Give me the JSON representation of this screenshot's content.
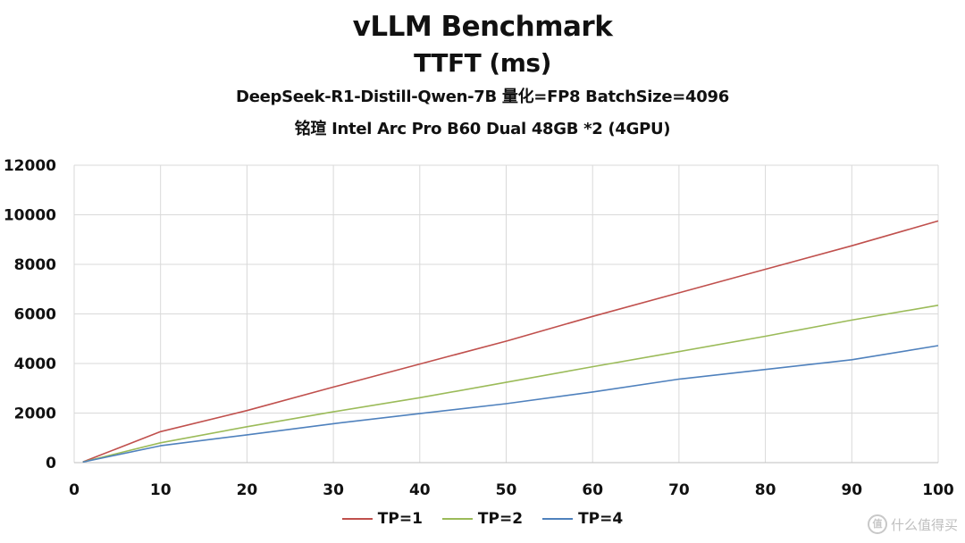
{
  "titles": {
    "main": "vLLM Benchmark",
    "sub": "TTFT (ms)",
    "line1": "DeepSeek-R1-Distill-Qwen-7B 量化=FP8 BatchSize=4096",
    "line2": "铭瑄 Intel Arc Pro B60 Dual 48GB *2 (4GPU)"
  },
  "watermark": {
    "badge": "值",
    "text": "什么值得买"
  },
  "chart_data": {
    "type": "line",
    "title": "vLLM Benchmark",
    "subtitle": "TTFT (ms)",
    "x": [
      1,
      10,
      20,
      30,
      40,
      50,
      60,
      70,
      80,
      90,
      100
    ],
    "xlim": [
      0,
      100
    ],
    "ylim": [
      0,
      12000
    ],
    "xticks": [
      0,
      10,
      20,
      30,
      40,
      50,
      60,
      70,
      80,
      90,
      100
    ],
    "yticks": [
      0,
      2000,
      4000,
      6000,
      8000,
      10000,
      12000
    ],
    "grid": true,
    "legend_position": "bottom",
    "series": [
      {
        "name": "TP=1",
        "color": "#c0504d",
        "values": [
          30,
          1250,
          2100,
          3050,
          3980,
          4900,
          5900,
          6850,
          7800,
          8750,
          9750
        ]
      },
      {
        "name": "TP=2",
        "color": "#9bbb59",
        "values": [
          25,
          800,
          1450,
          2050,
          2620,
          3240,
          3870,
          4480,
          5100,
          5750,
          6350
        ]
      },
      {
        "name": "TP=4",
        "color": "#4f81bd",
        "values": [
          20,
          680,
          1120,
          1570,
          1980,
          2380,
          2850,
          3370,
          3760,
          4150,
          4720
        ]
      }
    ]
  }
}
